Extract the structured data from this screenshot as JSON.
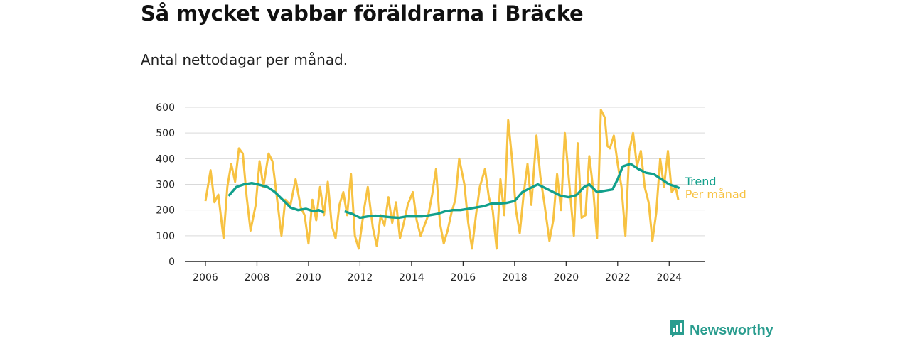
{
  "header": {
    "title": "Så mycket vabbar föräldrarna i Bräcke",
    "subtitle": "Antal nettodagar per månad."
  },
  "brand": {
    "name": "Newsworthy",
    "icon": "newsworthy-logo-icon"
  },
  "colors": {
    "monthly": "#f7c242",
    "trend": "#12a08c",
    "grid": "#d9d9d9",
    "axis": "#222222",
    "brand": "#2a9d8f"
  },
  "chart_data": {
    "type": "line",
    "title": "Så mycket vabbar föräldrarna i Bräcke",
    "subtitle": "Antal nettodagar per månad.",
    "xlabel": "",
    "ylabel": "",
    "xlim": [
      2005.2,
      2025.4
    ],
    "ylim": [
      0,
      600
    ],
    "yticks": [
      0,
      100,
      200,
      300,
      400,
      500,
      600
    ],
    "xticks": [
      2006,
      2008,
      2010,
      2012,
      2014,
      2016,
      2018,
      2020,
      2022,
      2024
    ],
    "grid": true,
    "legend": "inline-right",
    "series": [
      {
        "name": "Trend",
        "x": [
          2006.9,
          2007.2,
          2007.5,
          2007.8,
          2008.1,
          2008.4,
          2008.7,
          2009.0,
          2009.3,
          2009.6,
          2009.9,
          2010.2,
          2010.4,
          2010.6,
          null,
          2011.4,
          2011.7,
          2012.0,
          2012.3,
          2012.6,
          2012.9,
          2013.2,
          2013.5,
          2013.8,
          2014.1,
          2014.4,
          2014.7,
          2015.0,
          2015.3,
          2015.6,
          2015.9,
          2016.2,
          2016.5,
          2016.8,
          2017.1,
          2017.4,
          2017.7,
          2018.0,
          2018.3,
          2018.6,
          2018.9,
          2019.2,
          2019.5,
          2019.8,
          2020.1,
          2020.4,
          2020.7,
          2020.9,
          2021.2,
          2021.5,
          2021.8,
          2022.0,
          2022.2,
          2022.5,
          2022.8,
          2023.1,
          2023.4,
          2023.7,
          2024.0,
          2024.3,
          2024.4
        ],
        "y": [
          255,
          290,
          300,
          305,
          298,
          290,
          270,
          240,
          210,
          200,
          205,
          195,
          200,
          190,
          null,
          195,
          185,
          170,
          175,
          178,
          175,
          172,
          170,
          175,
          175,
          175,
          180,
          185,
          195,
          200,
          200,
          205,
          210,
          215,
          225,
          225,
          228,
          235,
          270,
          285,
          300,
          285,
          270,
          255,
          250,
          258,
          290,
          300,
          270,
          275,
          280,
          320,
          370,
          380,
          360,
          345,
          340,
          320,
          300,
          290,
          285
        ]
      },
      {
        "name": "Per månad",
        "x": [
          2006.0,
          2006.2,
          2006.35,
          2006.5,
          2006.7,
          2006.85,
          2007.0,
          2007.15,
          2007.3,
          2007.45,
          2007.6,
          2007.75,
          2007.95,
          2008.1,
          2008.25,
          2008.45,
          2008.6,
          2008.75,
          2008.95,
          2009.1,
          2009.3,
          2009.5,
          2009.7,
          2009.85,
          2010.0,
          2010.15,
          2010.3,
          2010.45,
          2010.6,
          2010.75,
          2010.9,
          2011.05,
          2011.2,
          2011.35,
          2011.5,
          2011.65,
          2011.8,
          2011.95,
          2012.15,
          2012.3,
          2012.5,
          2012.65,
          2012.8,
          2012.95,
          2013.1,
          2013.25,
          2013.4,
          2013.55,
          2013.7,
          2013.85,
          2014.05,
          2014.2,
          2014.35,
          2014.5,
          2014.65,
          2014.8,
          2014.95,
          2015.1,
          2015.25,
          2015.4,
          2015.55,
          2015.7,
          2015.85,
          2016.05,
          2016.2,
          2016.35,
          2016.5,
          2016.65,
          2016.85,
          2017.0,
          2017.15,
          2017.3,
          2017.45,
          2017.6,
          2017.75,
          2017.9,
          2018.05,
          2018.2,
          2018.35,
          2018.5,
          2018.65,
          2018.85,
          2019.0,
          2019.15,
          2019.35,
          2019.5,
          2019.65,
          2019.8,
          2019.95,
          2020.15,
          2020.3,
          2020.45,
          2020.6,
          2020.75,
          2020.9,
          2021.05,
          2021.2,
          2021.35,
          2021.5,
          2021.6,
          2021.7,
          2021.85,
          2022.0,
          2022.15,
          2022.3,
          2022.45,
          2022.6,
          2022.75,
          2022.9,
          2023.05,
          2023.2,
          2023.35,
          2023.5,
          2023.65,
          2023.8,
          2023.95,
          2024.1,
          2024.25,
          2024.35
        ],
        "y": [
          235,
          355,
          230,
          260,
          90,
          290,
          380,
          310,
          440,
          420,
          250,
          120,
          220,
          390,
          290,
          420,
          390,
          270,
          100,
          240,
          220,
          320,
          210,
          180,
          70,
          240,
          160,
          290,
          180,
          310,
          140,
          90,
          220,
          270,
          180,
          340,
          100,
          50,
          200,
          290,
          130,
          60,
          180,
          140,
          250,
          150,
          230,
          90,
          150,
          220,
          270,
          160,
          100,
          140,
          180,
          260,
          360,
          150,
          70,
          120,
          190,
          240,
          400,
          300,
          150,
          50,
          180,
          290,
          360,
          250,
          200,
          50,
          320,
          180,
          550,
          400,
          200,
          110,
          260,
          380,
          220,
          490,
          330,
          230,
          80,
          160,
          340,
          200,
          500,
          270,
          100,
          460,
          170,
          180,
          410,
          280,
          90,
          590,
          560,
          450,
          440,
          490,
          380,
          290,
          100,
          430,
          500,
          370,
          430,
          290,
          230,
          80,
          190,
          400,
          290,
          430,
          270,
          290,
          240
        ]
      }
    ],
    "labels": {
      "trend": "Trend",
      "monthly": "Per månad"
    }
  }
}
